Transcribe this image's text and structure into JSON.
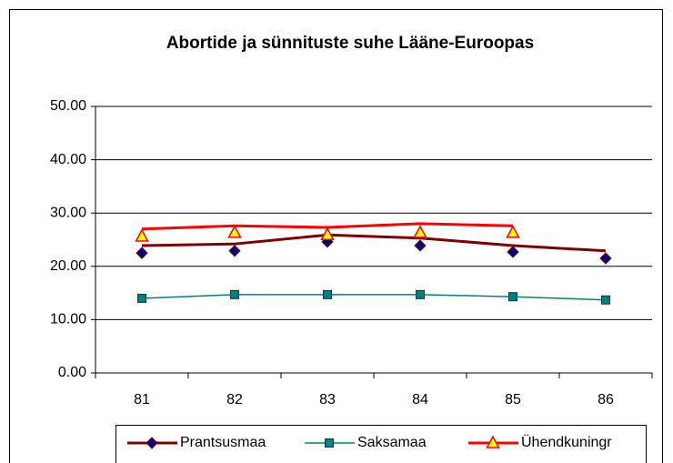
{
  "chart_data": {
    "type": "line",
    "title": "Abortide ja sünnituste suhe Lääne-Euroopas",
    "categories": [
      "81",
      "82",
      "83",
      "84",
      "85",
      "86"
    ],
    "series": [
      {
        "name": "Prantsusmaa",
        "color": "#800000",
        "marker": "diamond",
        "marker_color": "#000080",
        "values": [
          22.5,
          22.9,
          24.6,
          23.9,
          22.7,
          21.5
        ],
        "line_values": [
          23.9,
          24.2,
          25.9,
          25.3,
          23.9,
          22.9
        ]
      },
      {
        "name": "Saksamaa",
        "color": "#008080",
        "marker": "square",
        "marker_color": "#008080",
        "values": [
          14.0,
          14.7,
          14.7,
          14.7,
          14.3,
          13.7
        ],
        "line_values": [
          14.0,
          14.7,
          14.7,
          14.7,
          14.3,
          13.7
        ]
      },
      {
        "name": "Ühendkuningr",
        "color": "#ff0000",
        "marker": "triangle",
        "marker_color": "#ffff00",
        "values": [
          25.6,
          26.3,
          25.9,
          26.3,
          26.3,
          null
        ],
        "line_values": [
          27.0,
          27.6,
          27.3,
          28.0,
          27.6,
          null
        ]
      }
    ],
    "ylim": [
      0,
      50
    ],
    "yticks": [
      {
        "value": 0,
        "label": "0.00"
      },
      {
        "value": 10,
        "label": "10.00"
      },
      {
        "value": 20,
        "label": "20.00"
      },
      {
        "value": 30,
        "label": "30.00"
      },
      {
        "value": 40,
        "label": "40.00"
      },
      {
        "value": 50,
        "label": "50.00"
      }
    ],
    "grid": true,
    "legend": "bottom"
  }
}
